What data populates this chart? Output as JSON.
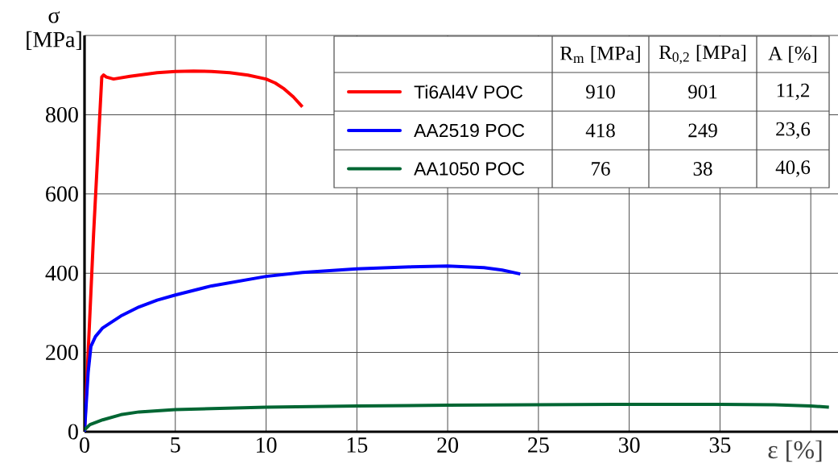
{
  "chart_data": {
    "type": "line",
    "xlabel": "ε [%]",
    "ylabel": "σ [MPa]",
    "xlim": [
      0,
      41.5
    ],
    "ylim": [
      0,
      1000
    ],
    "xticks": [
      0,
      5,
      10,
      15,
      20,
      25,
      30,
      35,
      {
        "value": 40,
        "label": null
      }
    ],
    "yticks": [
      0,
      200,
      400,
      600,
      800,
      {
        "value": 1000,
        "label": null
      }
    ],
    "grid": true,
    "legend": "top right",
    "line_style": "solid",
    "marker": "none",
    "series": [
      {
        "name": "Ti6Al4V POC",
        "color": "#ff0000",
        "x": [
          0,
          0.1,
          0.5,
          0.95,
          1.05,
          1.2,
          1.6,
          2.5,
          4,
          5,
          6,
          7,
          8,
          9,
          10,
          10.5,
          11,
          11.5,
          12
        ],
        "values": [
          0,
          100,
          500,
          895,
          900,
          895,
          890,
          897,
          906,
          909,
          910,
          909,
          906,
          900,
          890,
          880,
          865,
          845,
          820
        ]
      },
      {
        "name": "AA2519 POC",
        "color": "#0000ff",
        "x": [
          0,
          0.2,
          0.35,
          0.6,
          1,
          2,
          3,
          4,
          5,
          7,
          10,
          12,
          15,
          18,
          20,
          22,
          23,
          24
        ],
        "values": [
          0,
          150,
          215,
          240,
          262,
          292,
          315,
          332,
          345,
          368,
          392,
          402,
          411,
          416,
          418,
          414,
          408,
          398
        ]
      },
      {
        "name": "AA1050 POC",
        "color": "#006633",
        "x": [
          0,
          0.3,
          1,
          2,
          3,
          5,
          10,
          15,
          20,
          25,
          30,
          35,
          38,
          40,
          41
        ],
        "values": [
          5,
          18,
          30,
          43,
          50,
          56,
          62,
          65,
          67,
          68,
          69,
          69,
          68,
          65,
          62
        ]
      }
    ],
    "annotations": [
      "R$_{m}$ [MPa]",
      "R$_{0,2}$ [MPa]",
      "A [%]",
      "910",
      "901",
      "11,2",
      "418",
      "249",
      "23,6",
      "76",
      "38",
      "40,6"
    ]
  }
}
